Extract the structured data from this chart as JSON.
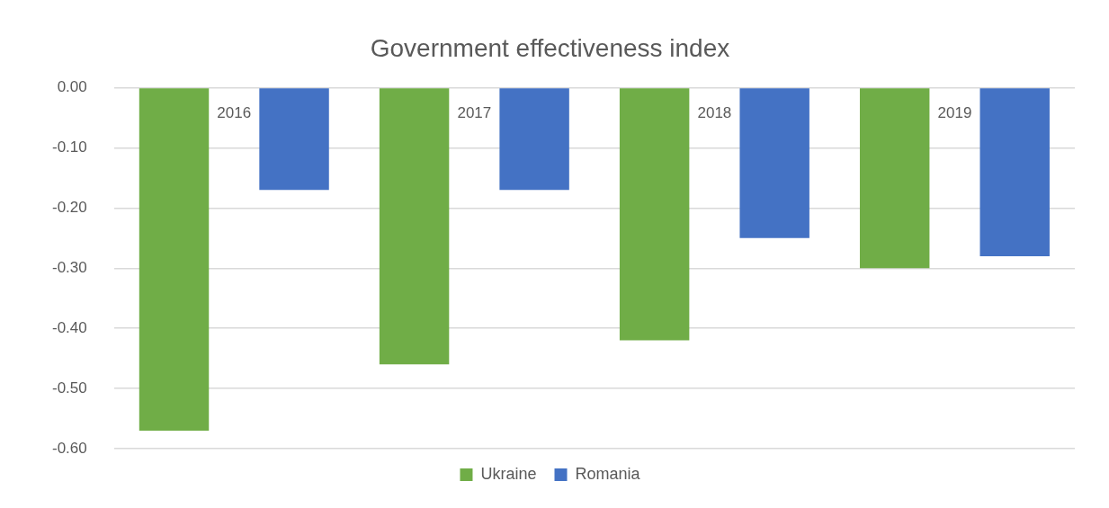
{
  "chart_data": {
    "type": "bar",
    "title": "Government effectiveness index",
    "categories": [
      "2016",
      "2017",
      "2018",
      "2019"
    ],
    "series": [
      {
        "name": "Ukraine",
        "color": "#70ad47",
        "values": [
          -0.57,
          -0.46,
          -0.42,
          -0.3
        ]
      },
      {
        "name": "Romania",
        "color": "#4472c4",
        "values": [
          -0.17,
          -0.17,
          -0.25,
          -0.28
        ]
      }
    ],
    "ylim": [
      -0.6,
      0
    ],
    "yticks": [
      {
        "value": 0,
        "label": "0.00"
      },
      {
        "value": -0.1,
        "label": "-0.10"
      },
      {
        "value": -0.2,
        "label": "-0.20"
      },
      {
        "value": -0.3,
        "label": "-0.30"
      },
      {
        "value": -0.4,
        "label": "-0.40"
      },
      {
        "value": -0.5,
        "label": "-0.50"
      },
      {
        "value": -0.6,
        "label": "-0.60"
      }
    ],
    "grid": "y",
    "legend": "bottom"
  }
}
